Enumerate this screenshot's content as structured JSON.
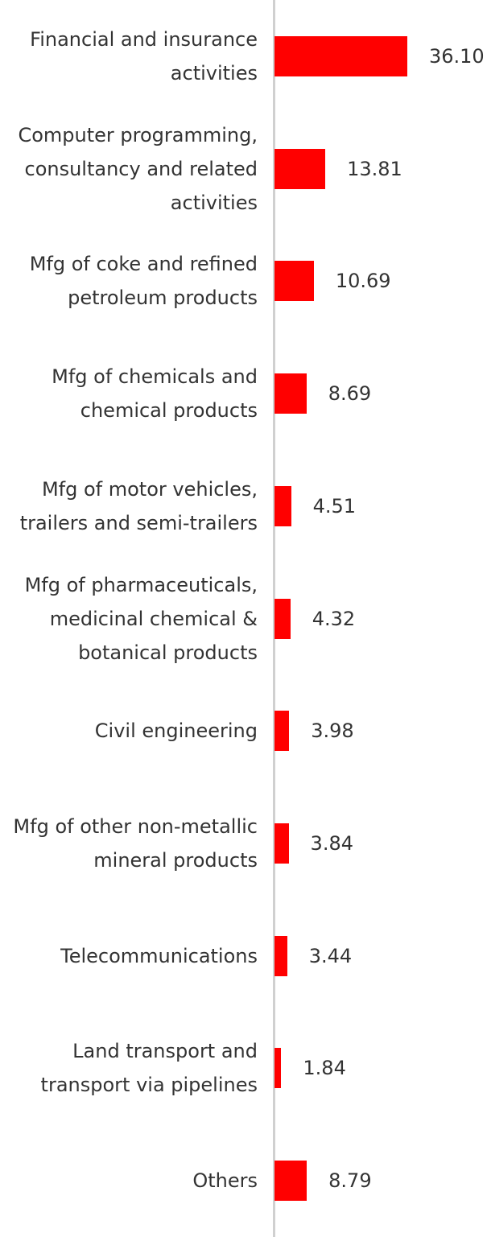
{
  "chart_data": {
    "type": "bar",
    "orientation": "horizontal",
    "categories": [
      "Financial and insurance activities",
      "Computer programming, consultancy and related activities",
      "Mfg of coke and refined petroleum products",
      "Mfg of chemicals and chemical products",
      "Mfg of motor vehicles, trailers and semi-trailers",
      "Mfg of pharmaceuticals, medicinal chemical & botanical products",
      "Civil engineering",
      "Mfg of other non-metallic mineral products",
      "Telecommunications",
      "Land transport and transport via pipelines",
      "Others"
    ],
    "values": [
      36.1,
      13.81,
      10.69,
      8.69,
      4.51,
      4.32,
      3.98,
      3.84,
      3.44,
      1.84,
      8.79
    ],
    "value_labels": [
      "36.10",
      "13.81",
      "10.69",
      "8.69",
      "4.51",
      "4.32",
      "3.98",
      "3.84",
      "3.44",
      "1.84",
      "8.79"
    ],
    "color": "#ff0000"
  }
}
